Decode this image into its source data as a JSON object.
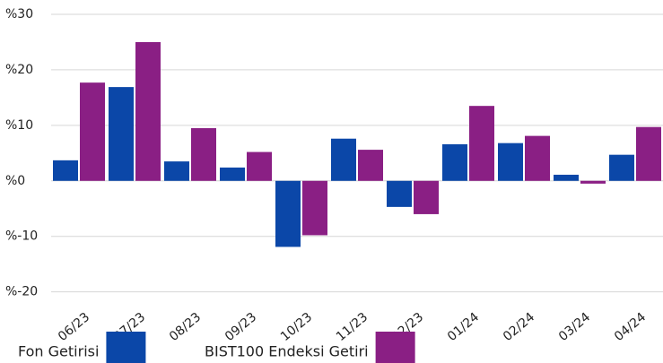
{
  "chart_data": {
    "type": "bar",
    "categories": [
      "06/23",
      "07/23",
      "08/23",
      "09/23",
      "10/23",
      "11/23",
      "12/23",
      "01/24",
      "02/24",
      "03/24",
      "04/24"
    ],
    "series": [
      {
        "name": "Fon Getirisi",
        "color": "#0b47a8",
        "values": [
          3.7,
          16.9,
          3.5,
          2.4,
          -11.9,
          7.6,
          -4.7,
          6.6,
          6.8,
          1.1,
          4.7
        ]
      },
      {
        "name": "BIST100 Endeksi Getiri",
        "color": "#8a1f84",
        "values": [
          17.7,
          25,
          9.5,
          5.2,
          -9.8,
          5.6,
          -6,
          13.5,
          8.1,
          -0.5,
          9.7
        ]
      }
    ],
    "ylim": [
      -22,
      30
    ],
    "yticks": [
      {
        "value": -20,
        "label": "%-20"
      },
      {
        "value": -10,
        "label": "%-10"
      },
      {
        "value": 0,
        "label": "%0"
      },
      {
        "value": 10,
        "label": "%10"
      },
      {
        "value": 20,
        "label": "%20"
      },
      {
        "value": 30,
        "label": "%30"
      }
    ],
    "grid": true,
    "legend": "bottom"
  }
}
